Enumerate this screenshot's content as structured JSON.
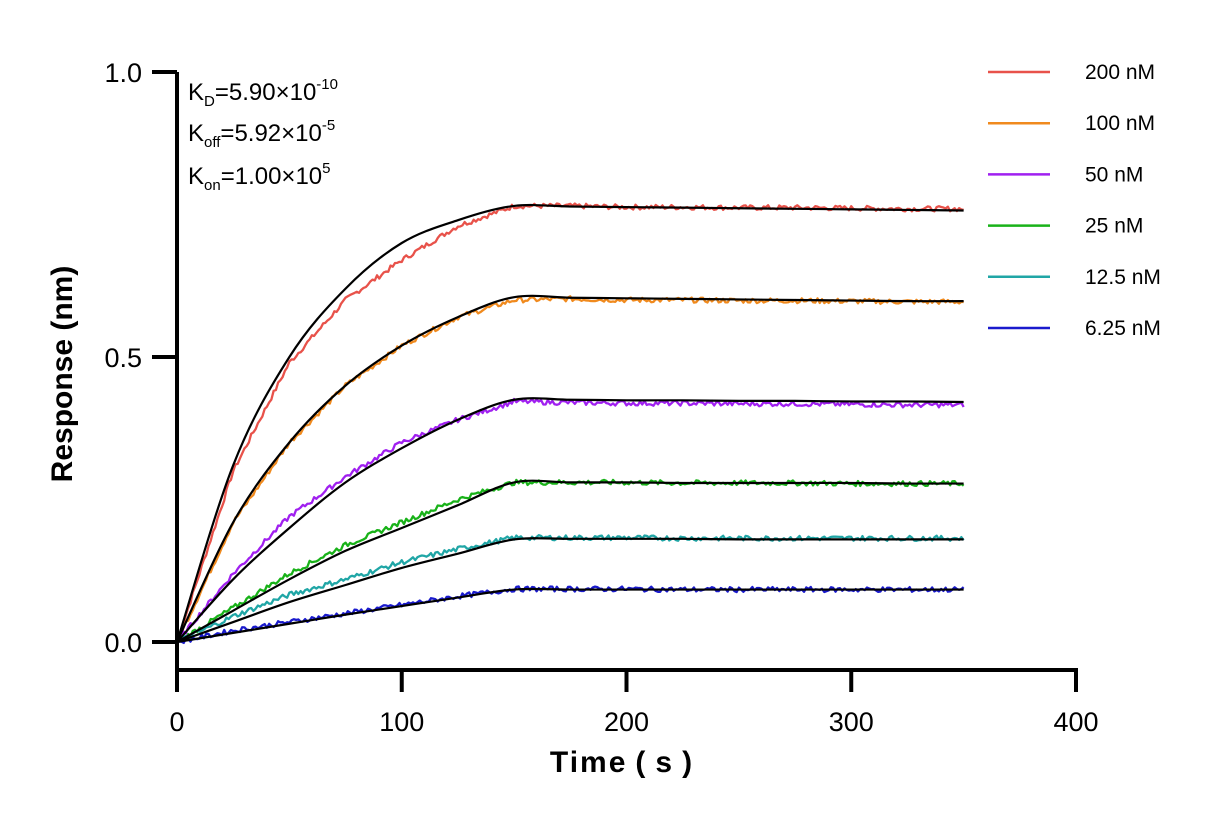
{
  "chart_data": {
    "type": "line",
    "title": "",
    "xlabel": "Time ( s )",
    "ylabel": "Response (nm)",
    "xlim": [
      0,
      400
    ],
    "ylim": [
      -0.05,
      1.0
    ],
    "xticks": [
      0,
      100,
      200,
      300,
      400
    ],
    "xtick_labels": [
      "0",
      "100",
      "200",
      "300",
      "400"
    ],
    "yticks": [
      0.0,
      0.5,
      1.0
    ],
    "ytick_labels": [
      "0.0",
      "0.5",
      "1.0"
    ],
    "grid": false,
    "legend_position": "top-right",
    "x": [
      0,
      25,
      50,
      75,
      100,
      125,
      150,
      175,
      200,
      225,
      250,
      275,
      300,
      325,
      350
    ],
    "fit_color": "#000000",
    "series": [
      {
        "name": "200 nM",
        "color": "#e8524a",
        "values": [
          0.0,
          0.3,
          0.49,
          0.6,
          0.67,
          0.73,
          0.765,
          0.765,
          0.763,
          0.763,
          0.762,
          0.762,
          0.761,
          0.76,
          0.76
        ],
        "fit": [
          0.0,
          0.31,
          0.5,
          0.62,
          0.7,
          0.74,
          0.765,
          0.764,
          0.763,
          0.762,
          0.761,
          0.76,
          0.759,
          0.758,
          0.757
        ]
      },
      {
        "name": "100 nM",
        "color": "#f08a1e",
        "values": [
          0.0,
          0.21,
          0.35,
          0.45,
          0.52,
          0.57,
          0.6,
          0.602,
          0.6,
          0.6,
          0.599,
          0.599,
          0.598,
          0.597,
          0.597
        ],
        "fit": [
          0.0,
          0.21,
          0.35,
          0.45,
          0.52,
          0.57,
          0.605,
          0.604,
          0.603,
          0.602,
          0.601,
          0.6,
          0.599,
          0.598,
          0.598
        ]
      },
      {
        "name": "50 nM",
        "color": "#a020f0",
        "values": [
          0.0,
          0.12,
          0.22,
          0.29,
          0.35,
          0.39,
          0.422,
          0.42,
          0.419,
          0.419,
          0.418,
          0.418,
          0.417,
          0.416,
          0.416
        ],
        "fit": [
          0.0,
          0.11,
          0.2,
          0.28,
          0.34,
          0.39,
          0.425,
          0.425,
          0.424,
          0.424,
          0.423,
          0.423,
          0.422,
          0.422,
          0.421
        ]
      },
      {
        "name": "25 nM",
        "color": "#19b219",
        "values": [
          0.0,
          0.06,
          0.12,
          0.17,
          0.21,
          0.25,
          0.28,
          0.28,
          0.28,
          0.279,
          0.279,
          0.279,
          0.278,
          0.278,
          0.278
        ],
        "fit": [
          0.0,
          0.055,
          0.11,
          0.16,
          0.2,
          0.24,
          0.28,
          0.28,
          0.28,
          0.279,
          0.279,
          0.279,
          0.279,
          0.278,
          0.278
        ]
      },
      {
        "name": "12.5 nM",
        "color": "#20a6a6",
        "values": [
          0.0,
          0.045,
          0.083,
          0.11,
          0.14,
          0.163,
          0.183,
          0.183,
          0.183,
          0.182,
          0.182,
          0.182,
          0.182,
          0.182,
          0.182
        ],
        "fit": [
          0.0,
          0.035,
          0.07,
          0.1,
          0.13,
          0.155,
          0.18,
          0.181,
          0.181,
          0.181,
          0.18,
          0.18,
          0.18,
          0.18,
          0.18
        ]
      },
      {
        "name": "6.25 nM",
        "color": "#1a1acd",
        "values": [
          0.0,
          0.02,
          0.035,
          0.05,
          0.065,
          0.08,
          0.093,
          0.093,
          0.093,
          0.092,
          0.092,
          0.092,
          0.092,
          0.092,
          0.092
        ],
        "fit": [
          0.0,
          0.016,
          0.032,
          0.048,
          0.063,
          0.078,
          0.092,
          0.092,
          0.092,
          0.092,
          0.092,
          0.092,
          0.092,
          0.092,
          0.092
        ]
      }
    ],
    "annotations": {
      "kd": {
        "base": "K",
        "sub": "D",
        "value": "=5.90×10",
        "exp": "-10"
      },
      "koff": {
        "base": "K",
        "sub": "off",
        "value": "=5.92×10",
        "exp": "-5"
      },
      "kon": {
        "base": "K",
        "sub": "on",
        "value": "=1.00×10",
        "exp": "5"
      }
    }
  }
}
